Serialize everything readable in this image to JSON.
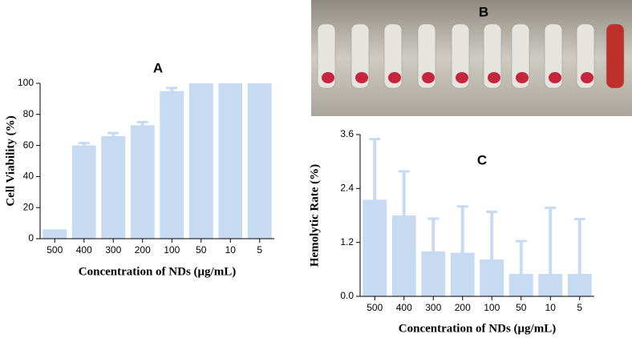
{
  "photo": {
    "label": "B"
  },
  "chart_data": [
    {
      "type": "bar",
      "title": "A",
      "y_label": "Cell Viability (%)",
      "x_label": "Concentration of NDs (μg/mL)",
      "categories": [
        "500",
        "400",
        "300",
        "200",
        "100",
        "50",
        "10",
        "5"
      ],
      "values": [
        6,
        60,
        66,
        73,
        95,
        100,
        100,
        100
      ],
      "errors": [
        0,
        1.5,
        2,
        2,
        2,
        0,
        0,
        0
      ],
      "color": "#c6daf2",
      "ylim": [
        0,
        100
      ],
      "yticks": [
        0,
        20,
        40,
        60,
        80,
        100
      ]
    },
    {
      "type": "bar",
      "title": "C",
      "y_label": "Hemolytic Rate (%)",
      "x_label": "Concentration of NDs (μg/mL)",
      "categories": [
        "500",
        "400",
        "300",
        "200",
        "100",
        "50",
        "10",
        "5"
      ],
      "values": [
        2.15,
        1.8,
        1.0,
        0.97,
        0.82,
        0.5,
        0.5,
        0.5
      ],
      "errors": [
        1.35,
        0.98,
        0.73,
        1.03,
        1.06,
        0.73,
        1.47,
        1.22
      ],
      "color": "#c6daf2",
      "ylim": [
        0,
        3.6
      ],
      "yticks": [
        {
          "value": 0,
          "label": "0.0"
        },
        {
          "value": 1.2,
          "label": "1.2"
        },
        {
          "value": 2.4,
          "label": "2.4"
        },
        {
          "value": 3.6,
          "label": "3.6"
        }
      ]
    }
  ]
}
